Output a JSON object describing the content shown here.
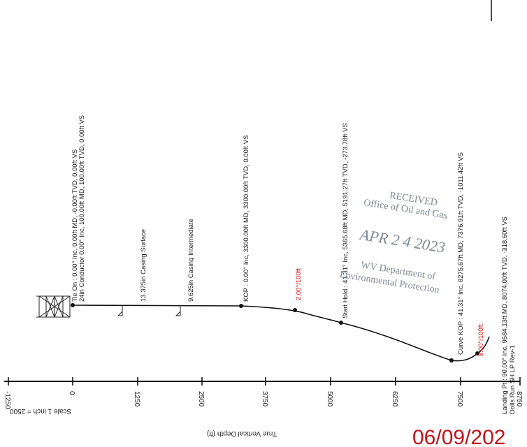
{
  "axis": {
    "title": "True Vertical Depth (ft)",
    "scale_note": "Scale 1 inch = 2500",
    "ticks": [
      "-1250",
      "0",
      "1250",
      "2500",
      "3750",
      "5000",
      "6250",
      "7500",
      "8750"
    ]
  },
  "annotations": {
    "tie_on": "Tie On : 0.00° Inc, 0.00ft MD, -0.00ft TVD, 0.00ft VS",
    "conductor": "24in Conductor  0.00° Inc, 100.00ft MD, 100.00ft TVD, 0.00ft VS",
    "casing_surface": "13.375in Casing Surface",
    "casing_intermediate": "9.625in Casing Intermediate",
    "kop": "KOP : 0.00° Inc, 3300.00ft MD, 3300.00ft TVD, 0.00ft VS",
    "build_rate_1": "2.00°/100ft",
    "start_hold": "Start Hold : 41.31° Inc, 5365.68ft MD, 5191.27ft TVD, -273.78ft VS",
    "curve_kop": "Curve KOP : 41.31° Inc, 8275.67ft MD, 7376.91ft TVD, -1011.42ft VS",
    "build_rate_2": "8.00°/100ft",
    "landing_pt": "Landing Pt : 90.00° Inc, 9584.13ft MD, 8074.00ft TVD, -318.60ft VS",
    "plan_name": "Dolls Run SH LP Rev-1"
  },
  "stamp": {
    "received": "RECEIVED",
    "office": "Office of Oil and Gas",
    "date": "APR 2 4 2023",
    "dept": "WV Department of",
    "dept2": "Environmental Protection"
  },
  "footer_date": "06/09/202",
  "colors": {
    "rate_label": "#cc1111",
    "footer_date": "#c0141b",
    "path": "#111111",
    "stamp": "#7f8893"
  }
}
